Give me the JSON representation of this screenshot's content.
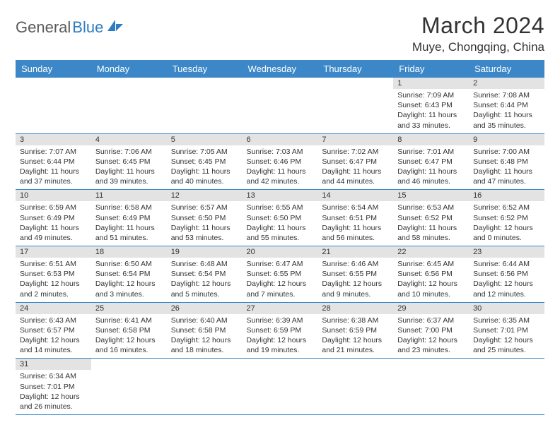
{
  "brand": {
    "part1": "General",
    "part2": "Blue"
  },
  "title": "March 2024",
  "location": "Muye, Chongqing, China",
  "colors": {
    "header_bg": "#3b87c8",
    "header_text": "#ffffff",
    "daynum_bg": "#e3e3e3",
    "cell_border": "#3b87c8",
    "body_text": "#333333",
    "logo_blue": "#2e7cc2"
  },
  "weekdays": [
    "Sunday",
    "Monday",
    "Tuesday",
    "Wednesday",
    "Thursday",
    "Friday",
    "Saturday"
  ],
  "weeks": [
    [
      null,
      null,
      null,
      null,
      null,
      {
        "day": "1",
        "sunrise": "Sunrise: 7:09 AM",
        "sunset": "Sunset: 6:43 PM",
        "daylight": "Daylight: 11 hours and 33 minutes."
      },
      {
        "day": "2",
        "sunrise": "Sunrise: 7:08 AM",
        "sunset": "Sunset: 6:44 PM",
        "daylight": "Daylight: 11 hours and 35 minutes."
      }
    ],
    [
      {
        "day": "3",
        "sunrise": "Sunrise: 7:07 AM",
        "sunset": "Sunset: 6:44 PM",
        "daylight": "Daylight: 11 hours and 37 minutes."
      },
      {
        "day": "4",
        "sunrise": "Sunrise: 7:06 AM",
        "sunset": "Sunset: 6:45 PM",
        "daylight": "Daylight: 11 hours and 39 minutes."
      },
      {
        "day": "5",
        "sunrise": "Sunrise: 7:05 AM",
        "sunset": "Sunset: 6:45 PM",
        "daylight": "Daylight: 11 hours and 40 minutes."
      },
      {
        "day": "6",
        "sunrise": "Sunrise: 7:03 AM",
        "sunset": "Sunset: 6:46 PM",
        "daylight": "Daylight: 11 hours and 42 minutes."
      },
      {
        "day": "7",
        "sunrise": "Sunrise: 7:02 AM",
        "sunset": "Sunset: 6:47 PM",
        "daylight": "Daylight: 11 hours and 44 minutes."
      },
      {
        "day": "8",
        "sunrise": "Sunrise: 7:01 AM",
        "sunset": "Sunset: 6:47 PM",
        "daylight": "Daylight: 11 hours and 46 minutes."
      },
      {
        "day": "9",
        "sunrise": "Sunrise: 7:00 AM",
        "sunset": "Sunset: 6:48 PM",
        "daylight": "Daylight: 11 hours and 47 minutes."
      }
    ],
    [
      {
        "day": "10",
        "sunrise": "Sunrise: 6:59 AM",
        "sunset": "Sunset: 6:49 PM",
        "daylight": "Daylight: 11 hours and 49 minutes."
      },
      {
        "day": "11",
        "sunrise": "Sunrise: 6:58 AM",
        "sunset": "Sunset: 6:49 PM",
        "daylight": "Daylight: 11 hours and 51 minutes."
      },
      {
        "day": "12",
        "sunrise": "Sunrise: 6:57 AM",
        "sunset": "Sunset: 6:50 PM",
        "daylight": "Daylight: 11 hours and 53 minutes."
      },
      {
        "day": "13",
        "sunrise": "Sunrise: 6:55 AM",
        "sunset": "Sunset: 6:50 PM",
        "daylight": "Daylight: 11 hours and 55 minutes."
      },
      {
        "day": "14",
        "sunrise": "Sunrise: 6:54 AM",
        "sunset": "Sunset: 6:51 PM",
        "daylight": "Daylight: 11 hours and 56 minutes."
      },
      {
        "day": "15",
        "sunrise": "Sunrise: 6:53 AM",
        "sunset": "Sunset: 6:52 PM",
        "daylight": "Daylight: 11 hours and 58 minutes."
      },
      {
        "day": "16",
        "sunrise": "Sunrise: 6:52 AM",
        "sunset": "Sunset: 6:52 PM",
        "daylight": "Daylight: 12 hours and 0 minutes."
      }
    ],
    [
      {
        "day": "17",
        "sunrise": "Sunrise: 6:51 AM",
        "sunset": "Sunset: 6:53 PM",
        "daylight": "Daylight: 12 hours and 2 minutes."
      },
      {
        "day": "18",
        "sunrise": "Sunrise: 6:50 AM",
        "sunset": "Sunset: 6:54 PM",
        "daylight": "Daylight: 12 hours and 3 minutes."
      },
      {
        "day": "19",
        "sunrise": "Sunrise: 6:48 AM",
        "sunset": "Sunset: 6:54 PM",
        "daylight": "Daylight: 12 hours and 5 minutes."
      },
      {
        "day": "20",
        "sunrise": "Sunrise: 6:47 AM",
        "sunset": "Sunset: 6:55 PM",
        "daylight": "Daylight: 12 hours and 7 minutes."
      },
      {
        "day": "21",
        "sunrise": "Sunrise: 6:46 AM",
        "sunset": "Sunset: 6:55 PM",
        "daylight": "Daylight: 12 hours and 9 minutes."
      },
      {
        "day": "22",
        "sunrise": "Sunrise: 6:45 AM",
        "sunset": "Sunset: 6:56 PM",
        "daylight": "Daylight: 12 hours and 10 minutes."
      },
      {
        "day": "23",
        "sunrise": "Sunrise: 6:44 AM",
        "sunset": "Sunset: 6:56 PM",
        "daylight": "Daylight: 12 hours and 12 minutes."
      }
    ],
    [
      {
        "day": "24",
        "sunrise": "Sunrise: 6:43 AM",
        "sunset": "Sunset: 6:57 PM",
        "daylight": "Daylight: 12 hours and 14 minutes."
      },
      {
        "day": "25",
        "sunrise": "Sunrise: 6:41 AM",
        "sunset": "Sunset: 6:58 PM",
        "daylight": "Daylight: 12 hours and 16 minutes."
      },
      {
        "day": "26",
        "sunrise": "Sunrise: 6:40 AM",
        "sunset": "Sunset: 6:58 PM",
        "daylight": "Daylight: 12 hours and 18 minutes."
      },
      {
        "day": "27",
        "sunrise": "Sunrise: 6:39 AM",
        "sunset": "Sunset: 6:59 PM",
        "daylight": "Daylight: 12 hours and 19 minutes."
      },
      {
        "day": "28",
        "sunrise": "Sunrise: 6:38 AM",
        "sunset": "Sunset: 6:59 PM",
        "daylight": "Daylight: 12 hours and 21 minutes."
      },
      {
        "day": "29",
        "sunrise": "Sunrise: 6:37 AM",
        "sunset": "Sunset: 7:00 PM",
        "daylight": "Daylight: 12 hours and 23 minutes."
      },
      {
        "day": "30",
        "sunrise": "Sunrise: 6:35 AM",
        "sunset": "Sunset: 7:01 PM",
        "daylight": "Daylight: 12 hours and 25 minutes."
      }
    ],
    [
      {
        "day": "31",
        "sunrise": "Sunrise: 6:34 AM",
        "sunset": "Sunset: 7:01 PM",
        "daylight": "Daylight: 12 hours and 26 minutes."
      },
      null,
      null,
      null,
      null,
      null,
      null
    ]
  ]
}
